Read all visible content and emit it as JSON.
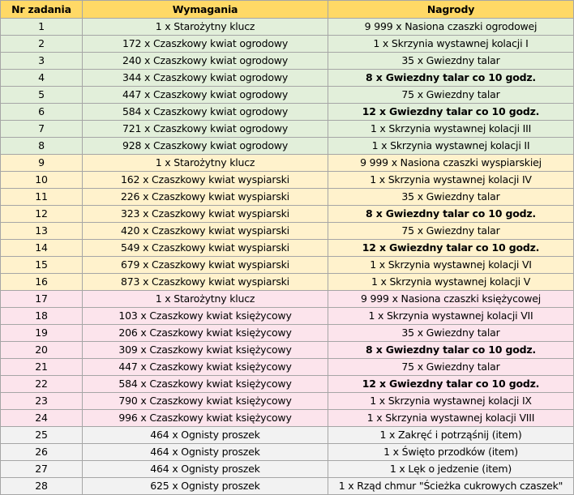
{
  "headers": {
    "nr": "Nr zadania",
    "req": "Wymagania",
    "rew": "Nagrody"
  },
  "rows": [
    {
      "nr": "1",
      "req": "1 x Starożytny klucz",
      "rew": "9 999 x Nasiona czaszki ogrodowej",
      "bold": false,
      "group": 1
    },
    {
      "nr": "2",
      "req": "172 x Czaszkowy kwiat ogrodowy",
      "rew": "1 x Skrzynia wystawnej kolacji I",
      "bold": false,
      "group": 1
    },
    {
      "nr": "3",
      "req": "240 x Czaszkowy kwiat ogrodowy",
      "rew": "35 x Gwiezdny talar",
      "bold": false,
      "group": 1
    },
    {
      "nr": "4",
      "req": "344 x Czaszkowy kwiat ogrodowy",
      "rew": "8 x Gwiezdny talar co 10 godz.",
      "bold": true,
      "group": 1
    },
    {
      "nr": "5",
      "req": "447 x Czaszkowy kwiat ogrodowy",
      "rew": "75 x Gwiezdny talar",
      "bold": false,
      "group": 1
    },
    {
      "nr": "6",
      "req": "584 x Czaszkowy kwiat ogrodowy",
      "rew": "12 x Gwiezdny talar co 10 godz.",
      "bold": true,
      "group": 1
    },
    {
      "nr": "7",
      "req": "721 x Czaszkowy kwiat ogrodowy",
      "rew": "1 x Skrzynia wystawnej kolacji III",
      "bold": false,
      "group": 1
    },
    {
      "nr": "8",
      "req": "928 x Czaszkowy kwiat ogrodowy",
      "rew": "1 x Skrzynia wystawnej kolacji II",
      "bold": false,
      "group": 1
    },
    {
      "nr": "9",
      "req": "1 x Starożytny klucz",
      "rew": "9 999 x Nasiona czaszki wyspiarskiej",
      "bold": false,
      "group": 2
    },
    {
      "nr": "10",
      "req": "162 x Czaszkowy kwiat wyspiarski",
      "rew": "1 x Skrzynia wystawnej kolacji IV",
      "bold": false,
      "group": 2
    },
    {
      "nr": "11",
      "req": "226 x Czaszkowy kwiat wyspiarski",
      "rew": "35 x Gwiezdny talar",
      "bold": false,
      "group": 2
    },
    {
      "nr": "12",
      "req": "323 x Czaszkowy kwiat wyspiarski",
      "rew": "8 x Gwiezdny talar co 10 godz.",
      "bold": true,
      "group": 2
    },
    {
      "nr": "13",
      "req": "420 x Czaszkowy kwiat wyspiarski",
      "rew": "75 x Gwiezdny talar",
      "bold": false,
      "group": 2
    },
    {
      "nr": "14",
      "req": "549 x Czaszkowy kwiat wyspiarski",
      "rew": "12 x Gwiezdny talar co 10 godz.",
      "bold": true,
      "group": 2
    },
    {
      "nr": "15",
      "req": "679 x Czaszkowy kwiat wyspiarski",
      "rew": "1 x Skrzynia wystawnej kolacji VI",
      "bold": false,
      "group": 2
    },
    {
      "nr": "16",
      "req": "873 x Czaszkowy kwiat wyspiarski",
      "rew": "1 x Skrzynia wystawnej kolacji V",
      "bold": false,
      "group": 2
    },
    {
      "nr": "17",
      "req": "1 x Starożytny klucz",
      "rew": "9 999 x Nasiona czaszki księżycowej",
      "bold": false,
      "group": 3
    },
    {
      "nr": "18",
      "req": "103 x Czaszkowy kwiat księżycowy",
      "rew": "1 x Skrzynia wystawnej kolacji VII",
      "bold": false,
      "group": 3
    },
    {
      "nr": "19",
      "req": "206 x Czaszkowy kwiat księżycowy",
      "rew": "35 x Gwiezdny talar",
      "bold": false,
      "group": 3
    },
    {
      "nr": "20",
      "req": "309 x Czaszkowy kwiat księżycowy",
      "rew": "8 x Gwiezdny talar co 10 godz.",
      "bold": true,
      "group": 3
    },
    {
      "nr": "21",
      "req": "447 x Czaszkowy kwiat księżycowy",
      "rew": "75 x Gwiezdny talar",
      "bold": false,
      "group": 3
    },
    {
      "nr": "22",
      "req": "584 x Czaszkowy kwiat księżycowy",
      "rew": "12 x Gwiezdny talar co 10 godz.",
      "bold": true,
      "group": 3
    },
    {
      "nr": "23",
      "req": "790 x Czaszkowy kwiat księżycowy",
      "rew": "1 x Skrzynia wystawnej kolacji IX",
      "bold": false,
      "group": 3
    },
    {
      "nr": "24",
      "req": "996 x Czaszkowy kwiat księżycowy",
      "rew": "1 x Skrzynia wystawnej kolacji VIII",
      "bold": false,
      "group": 3
    },
    {
      "nr": "25",
      "req": "464 x Ognisty proszek",
      "rew": "1 x Zakręć i potrząśnij (item)",
      "bold": false,
      "group": 4
    },
    {
      "nr": "26",
      "req": "464 x Ognisty proszek",
      "rew": "1 x Święto przodków (item)",
      "bold": false,
      "group": 4
    },
    {
      "nr": "27",
      "req": "464 x Ognisty proszek",
      "rew": "1 x Lęk o jedzenie (item)",
      "bold": false,
      "group": 4
    },
    {
      "nr": "28",
      "req": "625 x Ognisty proszek",
      "rew": "1 x Rząd chmur \"Ścieżka cukrowych czaszek\"",
      "bold": false,
      "group": 4
    }
  ],
  "colors": {
    "header": "#ffd966",
    "group1": "#e2efda",
    "group2": "#fff2cc",
    "group3": "#fce4ec",
    "group4": "#f2f2f2"
  }
}
